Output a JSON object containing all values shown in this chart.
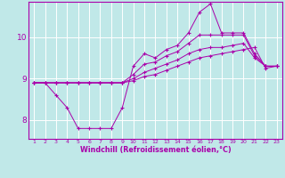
{
  "xlabel": "Windchill (Refroidissement éolien,°C)",
  "background_color": "#c0e8e8",
  "grid_color": "#ffffff",
  "line_color": "#aa00aa",
  "x_ticks": [
    1,
    2,
    3,
    4,
    5,
    6,
    7,
    8,
    9,
    10,
    11,
    12,
    13,
    14,
    15,
    16,
    17,
    18,
    19,
    20,
    21,
    22,
    23
  ],
  "ylim": [
    7.55,
    10.85
  ],
  "xlim": [
    0.5,
    23.5
  ],
  "yticks": [
    8,
    9,
    10
  ],
  "line1_y": [
    8.9,
    8.9,
    8.6,
    8.3,
    7.8,
    7.8,
    7.8,
    7.8,
    8.3,
    9.3,
    9.6,
    9.5,
    9.7,
    9.8,
    10.1,
    10.6,
    10.8,
    10.1,
    10.1,
    10.1,
    9.6,
    9.3,
    9.3
  ],
  "line2_y": [
    8.9,
    8.9,
    8.9,
    8.9,
    8.9,
    8.9,
    8.9,
    8.9,
    8.9,
    9.1,
    9.35,
    9.4,
    9.55,
    9.65,
    9.85,
    10.05,
    10.05,
    10.05,
    10.05,
    10.05,
    9.55,
    9.3,
    9.3
  ],
  "line3_y": [
    8.9,
    8.9,
    8.9,
    8.9,
    8.9,
    8.9,
    8.9,
    8.9,
    8.9,
    8.95,
    9.05,
    9.1,
    9.2,
    9.3,
    9.4,
    9.5,
    9.55,
    9.6,
    9.65,
    9.7,
    9.75,
    9.25,
    9.3
  ],
  "line4_y": [
    8.9,
    8.9,
    8.9,
    8.9,
    8.9,
    8.9,
    8.9,
    8.9,
    8.9,
    9.0,
    9.15,
    9.25,
    9.35,
    9.45,
    9.6,
    9.7,
    9.75,
    9.75,
    9.8,
    9.85,
    9.5,
    9.3,
    9.3
  ]
}
